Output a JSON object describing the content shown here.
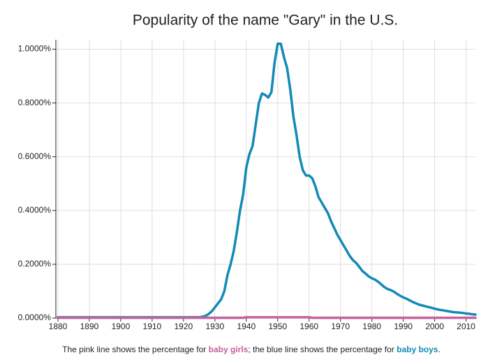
{
  "chart_data": {
    "type": "line",
    "title": "Popularity of the name \"Gary\" in the U.S.",
    "x": [
      1880,
      1881,
      1882,
      1883,
      1884,
      1885,
      1886,
      1887,
      1888,
      1889,
      1890,
      1891,
      1892,
      1893,
      1894,
      1895,
      1896,
      1897,
      1898,
      1899,
      1900,
      1901,
      1902,
      1903,
      1904,
      1905,
      1906,
      1907,
      1908,
      1909,
      1910,
      1911,
      1912,
      1913,
      1914,
      1915,
      1916,
      1917,
      1918,
      1919,
      1920,
      1921,
      1922,
      1923,
      1924,
      1925,
      1926,
      1927,
      1928,
      1929,
      1930,
      1931,
      1932,
      1933,
      1934,
      1935,
      1936,
      1937,
      1938,
      1939,
      1940,
      1941,
      1942,
      1943,
      1944,
      1945,
      1946,
      1947,
      1948,
      1949,
      1950,
      1951,
      1952,
      1953,
      1954,
      1955,
      1956,
      1957,
      1958,
      1959,
      1960,
      1961,
      1962,
      1963,
      1964,
      1965,
      1966,
      1967,
      1968,
      1969,
      1970,
      1971,
      1972,
      1973,
      1974,
      1975,
      1976,
      1977,
      1978,
      1979,
      1980,
      1981,
      1982,
      1983,
      1984,
      1985,
      1986,
      1987,
      1988,
      1989,
      1990,
      1991,
      1992,
      1993,
      1994,
      1995,
      1996,
      1997,
      1998,
      1999,
      2000,
      2001,
      2002,
      2003,
      2004,
      2005,
      2006,
      2007,
      2008,
      2009,
      2010,
      2011,
      2012,
      2013
    ],
    "series": [
      {
        "name": "baby boys",
        "color": "#128ab5",
        "values": [
          0.003,
          0.003,
          0.003,
          0.003,
          0.003,
          0.003,
          0.003,
          0.003,
          0.003,
          0.003,
          0.003,
          0.003,
          0.003,
          0.003,
          0.003,
          0.003,
          0.003,
          0.003,
          0.003,
          0.003,
          0.003,
          0.003,
          0.003,
          0.003,
          0.003,
          0.003,
          0.003,
          0.003,
          0.003,
          0.003,
          0.003,
          0.003,
          0.003,
          0.003,
          0.003,
          0.003,
          0.003,
          0.003,
          0.003,
          0.003,
          0.003,
          0.003,
          0.003,
          0.003,
          0.003,
          0.003,
          0.005,
          0.008,
          0.015,
          0.025,
          0.04,
          0.055,
          0.07,
          0.1,
          0.16,
          0.2,
          0.25,
          0.32,
          0.4,
          0.46,
          0.56,
          0.61,
          0.64,
          0.72,
          0.8,
          0.835,
          0.83,
          0.82,
          0.84,
          0.95,
          1.02,
          1.02,
          0.97,
          0.93,
          0.85,
          0.75,
          0.68,
          0.6,
          0.55,
          0.53,
          0.53,
          0.52,
          0.49,
          0.45,
          0.43,
          0.41,
          0.39,
          0.36,
          0.335,
          0.31,
          0.29,
          0.27,
          0.25,
          0.23,
          0.215,
          0.205,
          0.19,
          0.175,
          0.165,
          0.155,
          0.148,
          0.143,
          0.135,
          0.125,
          0.115,
          0.108,
          0.104,
          0.098,
          0.09,
          0.083,
          0.077,
          0.072,
          0.066,
          0.06,
          0.055,
          0.05,
          0.047,
          0.044,
          0.041,
          0.038,
          0.035,
          0.032,
          0.03,
          0.028,
          0.026,
          0.024,
          0.022,
          0.021,
          0.02,
          0.019,
          0.017,
          0.016,
          0.014,
          0.013
        ]
      },
      {
        "name": "baby girls",
        "color": "#c6619b",
        "values": [
          0.001,
          0.001,
          0.001,
          0.001,
          0.001,
          0.001,
          0.001,
          0.001,
          0.001,
          0.001,
          0.001,
          0.001,
          0.001,
          0.001,
          0.001,
          0.001,
          0.001,
          0.001,
          0.001,
          0.001,
          0.001,
          0.001,
          0.001,
          0.001,
          0.001,
          0.001,
          0.001,
          0.001,
          0.001,
          0.001,
          0.001,
          0.001,
          0.001,
          0.001,
          0.001,
          0.001,
          0.001,
          0.001,
          0.001,
          0.001,
          0.001,
          0.001,
          0.001,
          0.001,
          0.001,
          0.001,
          0.001,
          0.001,
          0.001,
          0.001,
          0.001,
          0.001,
          0.001,
          0.001,
          0.001,
          0.001,
          0.001,
          0.001,
          0.001,
          0.001,
          0.003,
          0.003,
          0.003,
          0.003,
          0.003,
          0.003,
          0.003,
          0.003,
          0.003,
          0.003,
          0.003,
          0.003,
          0.003,
          0.003,
          0.003,
          0.003,
          0.003,
          0.003,
          0.003,
          0.003,
          0.003,
          0.001,
          0.001,
          0.001,
          0.001,
          0.001,
          0.001,
          0.001,
          0.001,
          0.001,
          0.001,
          0.001,
          0.001,
          0.001,
          0.001,
          0.001,
          0.001,
          0.001,
          0.001,
          0.001,
          0.001,
          0.001,
          0.001,
          0.001,
          0.001,
          0.001,
          0.001,
          0.001,
          0.001,
          0.001,
          0.001,
          0.001,
          0.001,
          0.001,
          0.001,
          0.001,
          0.001,
          0.001,
          0.001,
          0.001,
          0.001,
          0.001,
          0.001,
          0.001,
          0.001,
          0.001,
          0.001,
          0.001,
          0.001,
          0.001,
          0.001,
          0.001,
          0.001,
          0.001
        ]
      }
    ],
    "xlim": [
      1880,
      2013
    ],
    "xticks": [
      1880,
      1890,
      1900,
      1910,
      1920,
      1930,
      1940,
      1950,
      1960,
      1970,
      1980,
      1990,
      2000,
      2010
    ],
    "ylim": [
      0,
      1.035
    ],
    "yticks": [
      {
        "value": 0,
        "label": "0.0000%"
      },
      {
        "value": 0.2,
        "label": "0.2000%"
      },
      {
        "value": 0.4,
        "label": "0.4000%"
      },
      {
        "value": 0.6,
        "label": "0.6000%"
      },
      {
        "value": 0.8,
        "label": "0.8000%"
      },
      {
        "value": 1,
        "label": "1.0000%"
      }
    ],
    "grid": true,
    "caption": [
      "The pink line shows the percentage for ",
      "; the blue line shows the percentage for ",
      "."
    ]
  }
}
